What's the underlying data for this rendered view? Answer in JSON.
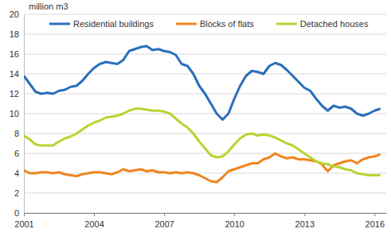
{
  "chart_data": {
    "type": "line",
    "y_label": "million m3",
    "x": [
      2001,
      2001.25,
      2001.5,
      2001.75,
      2002,
      2002.25,
      2002.5,
      2002.75,
      2003,
      2003.25,
      2003.5,
      2003.75,
      2004,
      2004.25,
      2004.5,
      2004.75,
      2005,
      2005.25,
      2005.5,
      2005.75,
      2006,
      2006.25,
      2006.5,
      2006.75,
      2007,
      2007.25,
      2007.5,
      2007.75,
      2008,
      2008.25,
      2008.5,
      2008.75,
      2009,
      2009.25,
      2009.5,
      2009.75,
      2010,
      2010.25,
      2010.5,
      2010.75,
      2011,
      2011.25,
      2011.5,
      2011.75,
      2012,
      2012.25,
      2012.5,
      2012.75,
      2013,
      2013.25,
      2013.5,
      2013.75,
      2014,
      2014.25,
      2014.5,
      2014.75,
      2015,
      2015.25,
      2015.5,
      2015.75,
      2016,
      2016.25
    ],
    "series": [
      {
        "name": "Residential buildings",
        "color": "#2a6ebb",
        "values": [
          13.8,
          13.0,
          12.2,
          12.0,
          12.1,
          12.0,
          12.3,
          12.4,
          12.7,
          12.8,
          13.3,
          14.0,
          14.6,
          15.0,
          15.2,
          15.1,
          15.0,
          15.4,
          16.3,
          16.5,
          16.7,
          16.8,
          16.4,
          16.5,
          16.3,
          16.2,
          15.9,
          15.0,
          14.8,
          14.0,
          12.8,
          12.0,
          11.0,
          10.0,
          9.4,
          10.0,
          11.5,
          12.8,
          13.8,
          14.3,
          14.2,
          14.0,
          14.8,
          15.1,
          14.9,
          14.4,
          13.8,
          13.2,
          12.6,
          12.3,
          11.5,
          10.8,
          10.3,
          10.8,
          10.6,
          10.7,
          10.5,
          10.0,
          9.8,
          10.0,
          10.3,
          10.5
        ]
      },
      {
        "name": "Blocks of flats",
        "color": "#f0851e",
        "values": [
          4.3,
          4.0,
          4.0,
          4.1,
          4.1,
          4.0,
          4.1,
          3.9,
          3.8,
          3.7,
          3.9,
          4.0,
          4.1,
          4.1,
          4.0,
          3.9,
          4.1,
          4.4,
          4.2,
          4.3,
          4.4,
          4.2,
          4.3,
          4.1,
          4.1,
          4.0,
          4.1,
          4.0,
          4.1,
          4.0,
          3.8,
          3.5,
          3.2,
          3.1,
          3.6,
          4.2,
          4.4,
          4.6,
          4.8,
          5.0,
          5.0,
          5.4,
          5.6,
          6.0,
          5.7,
          5.5,
          5.6,
          5.4,
          5.4,
          5.3,
          5.2,
          4.9,
          4.2,
          4.8,
          5.0,
          5.2,
          5.3,
          5.0,
          5.4,
          5.6,
          5.7,
          5.9
        ]
      },
      {
        "name": "Detached houses",
        "color": "#b8d432",
        "values": [
          7.8,
          7.4,
          6.9,
          6.8,
          6.8,
          6.8,
          7.2,
          7.5,
          7.7,
          8.0,
          8.4,
          8.8,
          9.1,
          9.3,
          9.6,
          9.7,
          9.8,
          10.0,
          10.3,
          10.5,
          10.5,
          10.4,
          10.3,
          10.3,
          10.2,
          10.0,
          9.5,
          9.0,
          8.6,
          8.0,
          7.2,
          6.5,
          5.8,
          5.6,
          5.7,
          6.2,
          6.9,
          7.5,
          7.9,
          8.0,
          7.8,
          7.9,
          7.8,
          7.6,
          7.3,
          7.0,
          6.8,
          6.4,
          6.0,
          5.6,
          5.2,
          5.0,
          4.9,
          4.7,
          4.6,
          4.4,
          4.3,
          4.0,
          3.9,
          3.8,
          3.8,
          3.8
        ]
      }
    ],
    "xlim": [
      2001,
      2016.5
    ],
    "xticks": [
      2001,
      2004,
      2007,
      2010,
      2013,
      2016
    ],
    "ylim": [
      0,
      20
    ],
    "yticks": [
      0,
      2,
      4,
      6,
      8,
      10,
      12,
      14,
      16,
      18,
      20
    ],
    "grid": true,
    "legend": "top"
  }
}
